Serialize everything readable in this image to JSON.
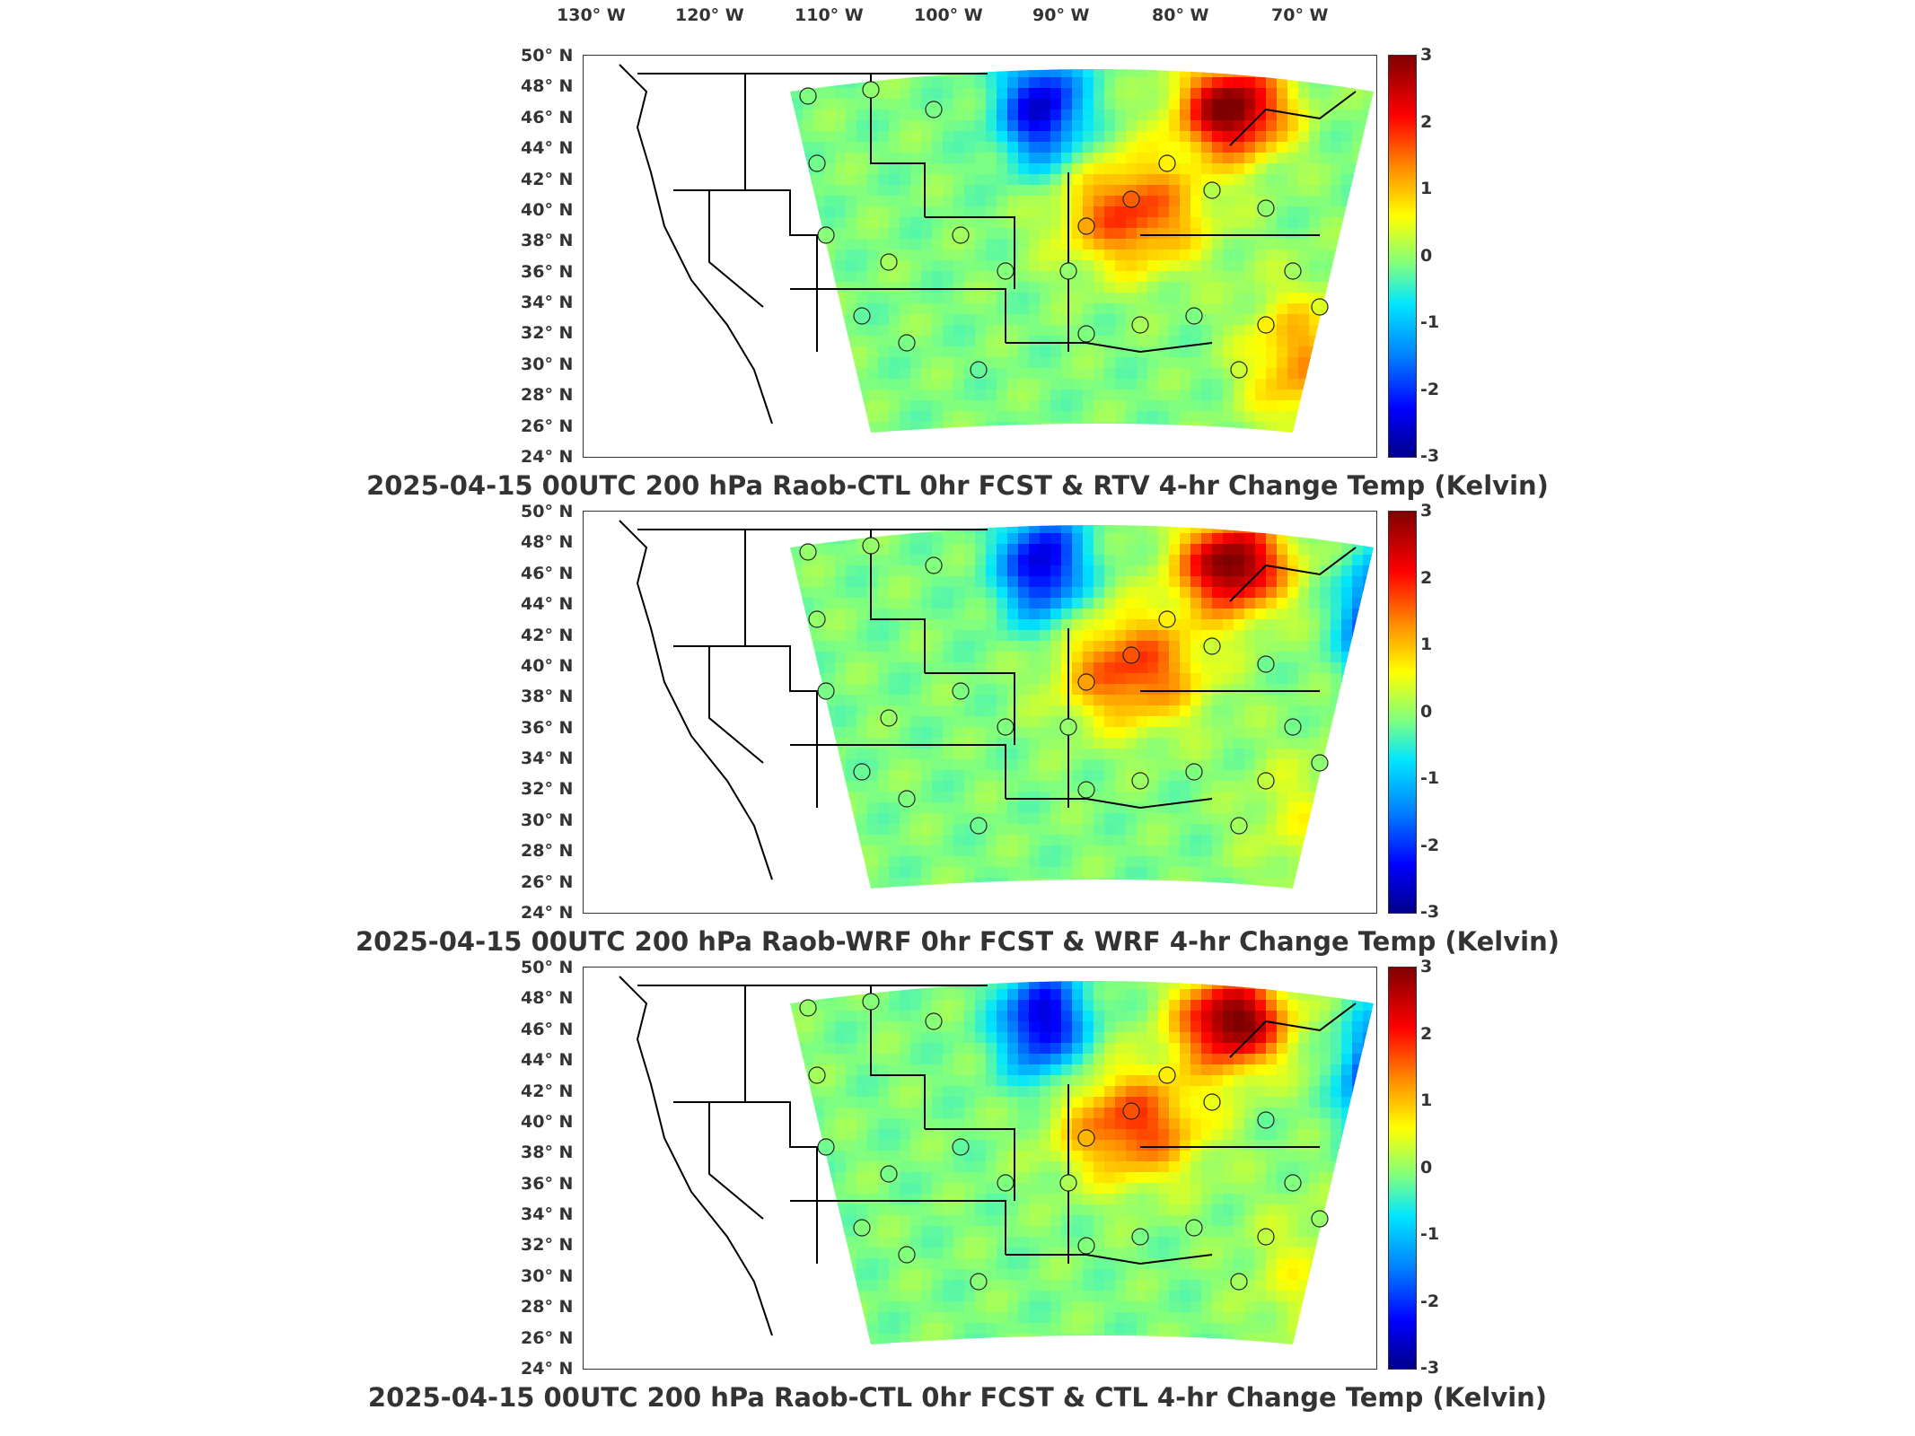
{
  "lon_labels": [
    "130° W",
    "120° W",
    "110° W",
    "100° W",
    "90° W",
    "80° W",
    "70° W"
  ],
  "lat_labels": [
    "50° N",
    "48° N",
    "46° N",
    "44° N",
    "42° N",
    "40° N",
    "38° N",
    "36° N",
    "34° N",
    "32° N",
    "30° N",
    "28° N",
    "26° N",
    "24° N"
  ],
  "colorbar": {
    "ticks": [
      "3",
      "2",
      "1",
      "0",
      "-1",
      "-2",
      "-3"
    ],
    "colors": [
      "#800000",
      "#ff0000",
      "#ff8c00",
      "#ffff00",
      "#7fff7f",
      "#00e5ff",
      "#007fff",
      "#0000ff",
      "#00008b"
    ],
    "range": [
      -3,
      3
    ]
  },
  "panels": [
    {
      "title": "2025-04-15 00UTC 200 hPa Raob-CTL 0hr FCST & RTV 4-hr Change Temp (Kelvin)"
    },
    {
      "title": "2025-04-15 00UTC 200 hPa Raob-WRF 0hr FCST & WRF 4-hr Change Temp (Kelvin)"
    },
    {
      "title": "2025-04-15 00UTC 200 hPa Raob-CTL 0hr FCST & CTL 4-hr Change Temp (Kelvin)"
    }
  ]
}
